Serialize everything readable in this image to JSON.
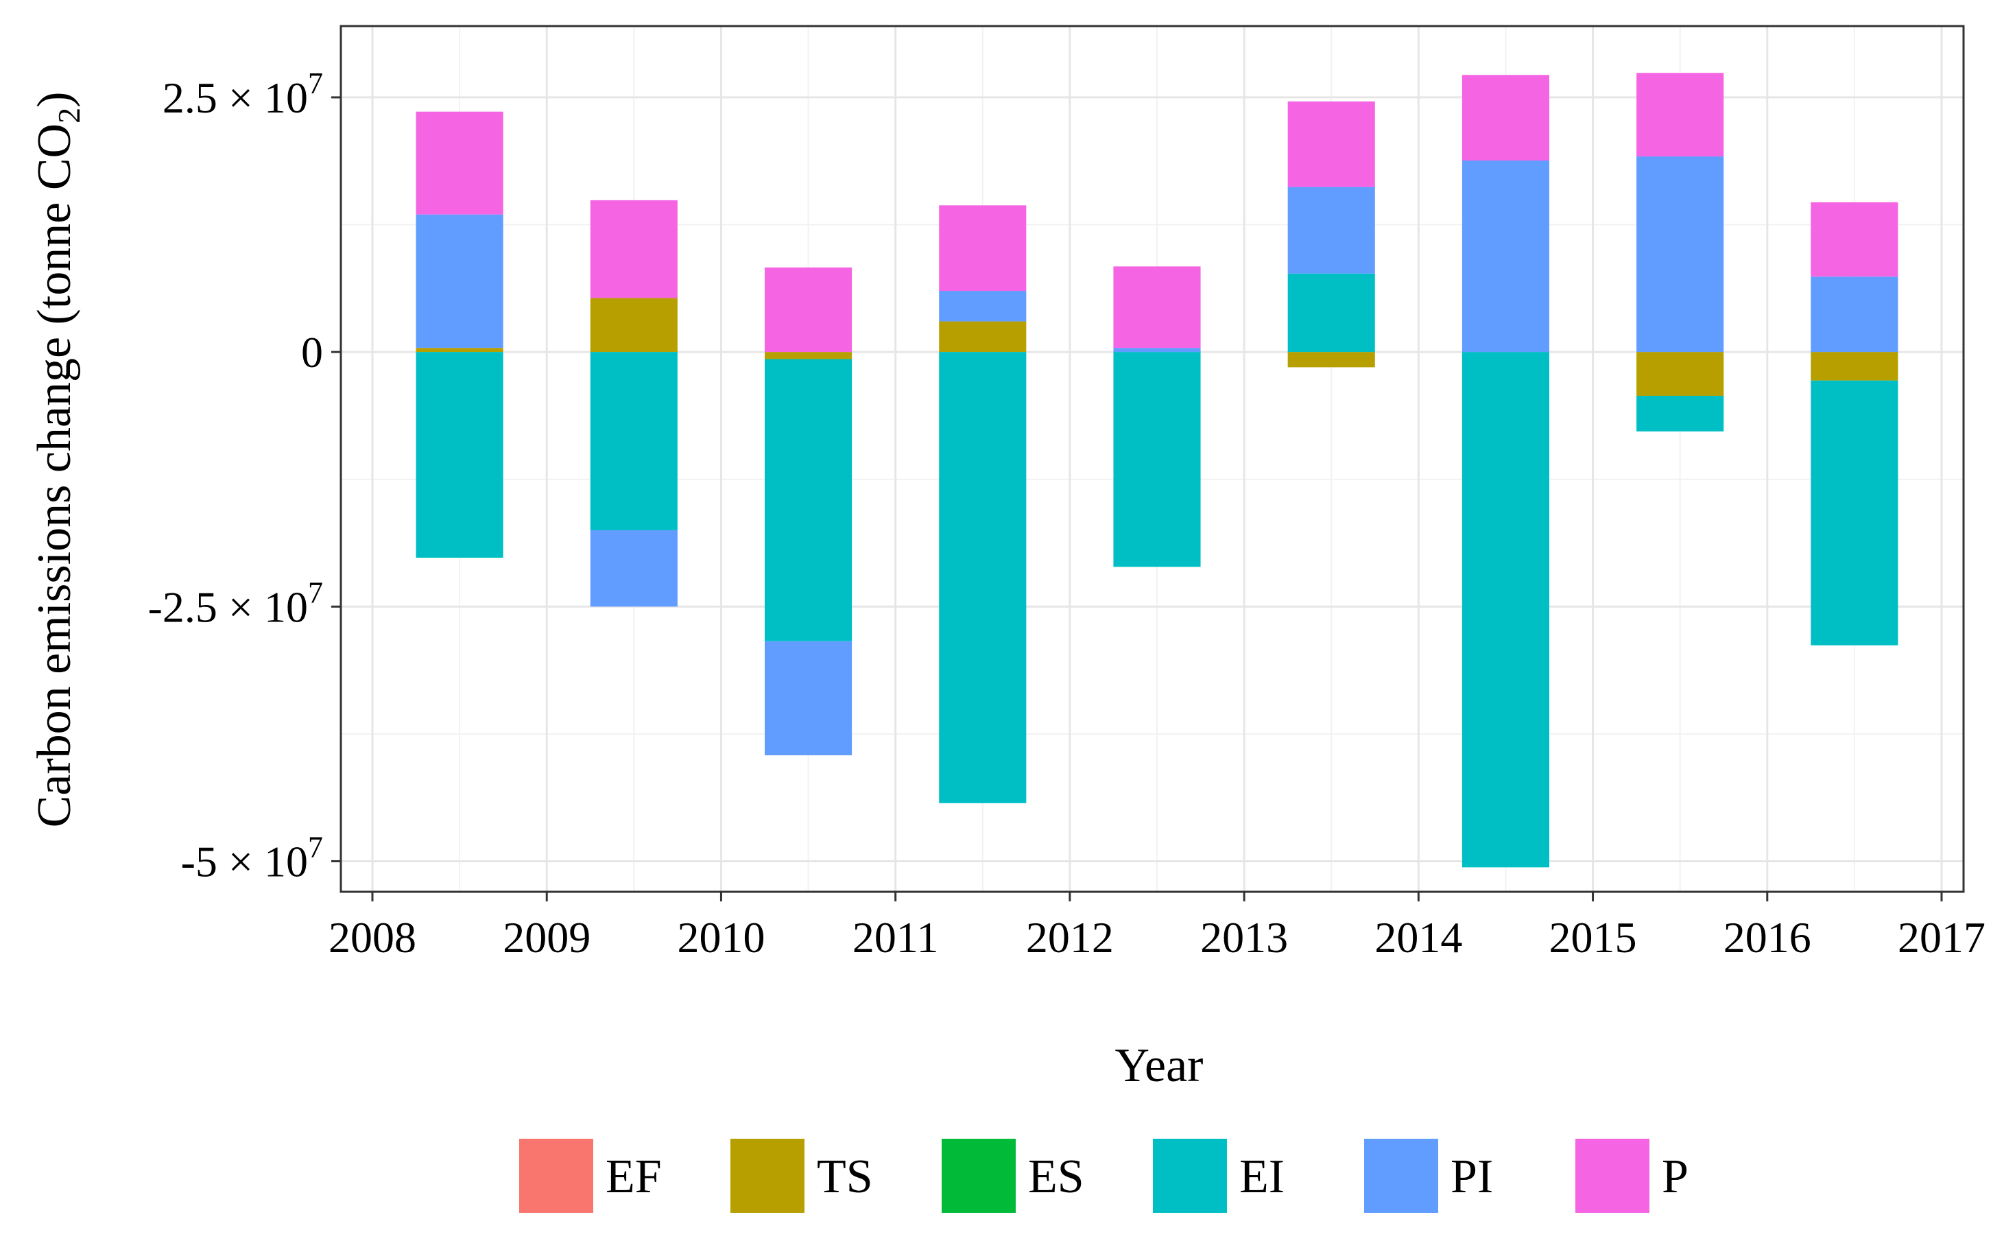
{
  "chart_data": {
    "type": "bar",
    "stacked": true,
    "title": "",
    "xlabel": "Year",
    "ylabel_prefix": "Carbon emissions change (tonne CO",
    "ylabel_subscript": "2",
    "ylabel_suffix": ")",
    "xlim": [
      2008,
      2017
    ],
    "ylim": [
      -53000000,
      32000000
    ],
    "x_ticks": [
      {
        "value": 2008,
        "label": "2008"
      },
      {
        "value": 2009,
        "label": "2009"
      },
      {
        "value": 2010,
        "label": "2010"
      },
      {
        "value": 2011,
        "label": "2011"
      },
      {
        "value": 2012,
        "label": "2012"
      },
      {
        "value": 2013,
        "label": "2013"
      },
      {
        "value": 2014,
        "label": "2014"
      },
      {
        "value": 2015,
        "label": "2015"
      },
      {
        "value": 2016,
        "label": "2016"
      },
      {
        "value": 2017,
        "label": "2017"
      }
    ],
    "y_ticks": [
      {
        "value": 25000000,
        "mantissa": "2.5",
        "exponent": "7"
      },
      {
        "value": 0,
        "mantissa": "0",
        "exponent": ""
      },
      {
        "value": -25000000,
        "mantissa": "-2.5",
        "exponent": "7"
      },
      {
        "value": -50000000,
        "mantissa": "-5",
        "exponent": "7"
      }
    ],
    "grid": true,
    "legend_position": "bottom",
    "categories": [
      2008.5,
      2009.5,
      2010.5,
      2011.5,
      2012.5,
      2013.5,
      2014.5,
      2015.5,
      2016.5
    ],
    "bar_width": 0.5,
    "series": [
      {
        "name": "EF",
        "color": "#F8766D",
        "values": [
          0,
          0,
          0,
          0,
          0,
          0,
          0,
          0,
          0
        ]
      },
      {
        "name": "TS",
        "color": "#B79F00",
        "values": [
          400000,
          5300000,
          -700000,
          3000000,
          0,
          -1500000,
          0,
          -4300000,
          -2800000
        ]
      },
      {
        "name": "ES",
        "color": "#00BA38",
        "values": [
          0,
          0,
          0,
          0,
          0,
          0,
          0,
          0,
          0
        ]
      },
      {
        "name": "EI",
        "color": "#00BFC4",
        "values": [
          -20200000,
          -17500000,
          -27700000,
          -44300000,
          -21100000,
          7700000,
          -50600000,
          -3500000,
          -26000000
        ]
      },
      {
        "name": "PI",
        "color": "#619CFF",
        "values": [
          13100000,
          -7500000,
          -11200000,
          3000000,
          400000,
          8500000,
          18800000,
          19200000,
          7400000
        ]
      },
      {
        "name": "P",
        "color": "#F564E3",
        "values": [
          10100000,
          9600000,
          8300000,
          8400000,
          8000000,
          8400000,
          8400000,
          8200000,
          7300000
        ]
      }
    ]
  }
}
